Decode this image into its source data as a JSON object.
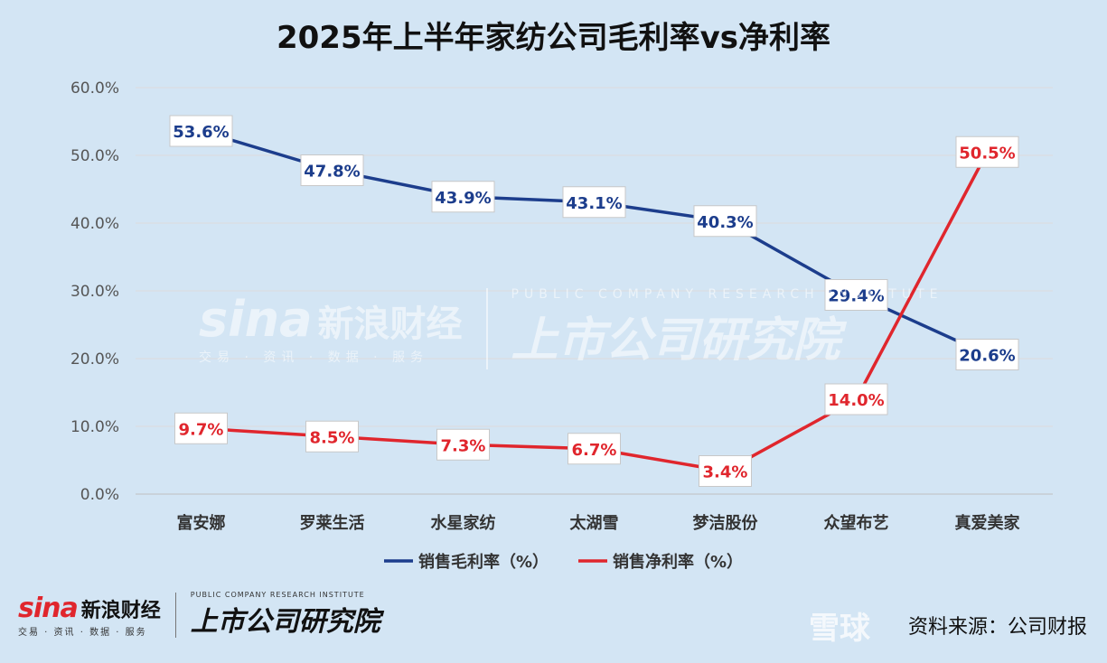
{
  "chart_data": {
    "type": "line",
    "title": "2025年上半年家纺公司毛利率vs净利率",
    "categories": [
      "富安娜",
      "罗莱生活",
      "水星家纺",
      "太湖雪",
      "梦洁股份",
      "众望布艺",
      "真爱美家"
    ],
    "series": [
      {
        "name": "销售毛利率（%）",
        "values": [
          53.6,
          47.8,
          43.9,
          43.1,
          40.3,
          29.4,
          20.6
        ],
        "labels": [
          "53.6%",
          "47.8%",
          "43.9%",
          "43.1%",
          "40.3%",
          "29.4%",
          "20.6%"
        ],
        "color": "#1c3d8c"
      },
      {
        "name": "销售净利率（%）",
        "values": [
          9.7,
          8.5,
          7.3,
          6.7,
          3.4,
          14.0,
          50.5
        ],
        "labels": [
          "9.7%",
          "8.5%",
          "7.3%",
          "6.7%",
          "3.4%",
          "14.0%",
          "50.5%"
        ],
        "color": "#e0262d"
      }
    ],
    "yticks": [
      "0.0%",
      "10.0%",
      "20.0%",
      "30.0%",
      "40.0%",
      "50.0%",
      "60.0%"
    ],
    "ylim": [
      0,
      60
    ],
    "grid": true,
    "legend": "bottom"
  },
  "footer": {
    "sina_word": "sina",
    "sina_cn": "新浪财经",
    "sina_sub": "交易 · 资讯 · 数据 · 服务",
    "inst_en": "PUBLIC COMPANY RESEARCH INSTITUTE",
    "inst_cn": "上市公司研究院",
    "source": "资料来源：公司财报",
    "xueqiu": "雪球"
  }
}
